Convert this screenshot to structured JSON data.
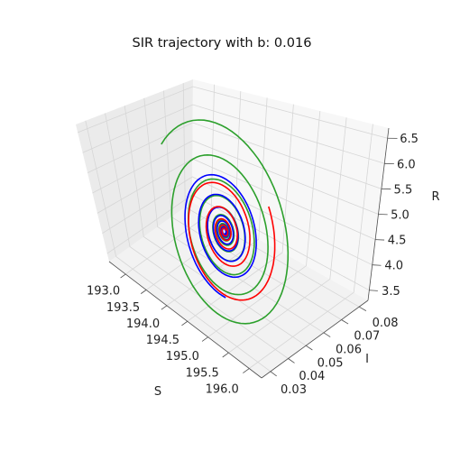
{
  "chart_data": {
    "type": "line",
    "projection": "3d",
    "title": "SIR trajectory with b: 0.016",
    "xlabel": "S",
    "ylabel": "I",
    "zlabel": "R",
    "xlim": [
      192.6,
      196.3
    ],
    "ylim": [
      0.025,
      0.085
    ],
    "zlim": [
      3.3,
      6.7
    ],
    "x_ticks": [
      "193.0",
      "193.5",
      "194.0",
      "194.5",
      "195.0",
      "195.5",
      "196.0"
    ],
    "y_ticks": [
      "0.03",
      "0.04",
      "0.05",
      "0.06",
      "0.07",
      "0.08"
    ],
    "z_ticks": [
      "3.5",
      "4.0",
      "4.5",
      "5.0",
      "5.5",
      "6.0",
      "6.5"
    ],
    "grid": true,
    "equilibrium": {
      "S": 194.3,
      "I": 0.055,
      "R": 4.38
    },
    "series": [
      {
        "color": "#2ca02c",
        "start": {
          "S": 194.0,
          "I": 0.033,
          "R": 6.55
        },
        "turns": 9
      },
      {
        "color": "#0000ff",
        "start": {
          "S": 195.2,
          "I": 0.032,
          "R": 4.0
        },
        "turns": 8
      },
      {
        "color": "#ff0000",
        "start": {
          "S": 194.6,
          "I": 0.072,
          "R": 4.7
        },
        "turns": 5
      }
    ]
  }
}
